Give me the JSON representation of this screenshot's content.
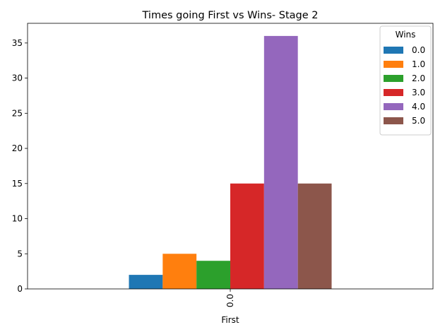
{
  "chart_data": {
    "type": "bar",
    "title": "Times going First vs Wins- Stage 2",
    "xlabel": "First",
    "ylabel": "",
    "categories": [
      "0.0"
    ],
    "ylim": [
      0,
      37.8
    ],
    "yticks": [
      0,
      5,
      10,
      15,
      20,
      25,
      30,
      35
    ],
    "grid": false,
    "legend": {
      "title": "Wins",
      "placement": "top-right"
    },
    "series": [
      {
        "name": "0.0",
        "values": [
          2
        ],
        "color": "#1f77b4"
      },
      {
        "name": "1.0",
        "values": [
          5
        ],
        "color": "#ff7f0e"
      },
      {
        "name": "2.0",
        "values": [
          4
        ],
        "color": "#2ca02c"
      },
      {
        "name": "3.0",
        "values": [
          15
        ],
        "color": "#d62728"
      },
      {
        "name": "4.0",
        "values": [
          36
        ],
        "color": "#9467bd"
      },
      {
        "name": "5.0",
        "values": [
          15
        ],
        "color": "#8c564b"
      }
    ]
  }
}
